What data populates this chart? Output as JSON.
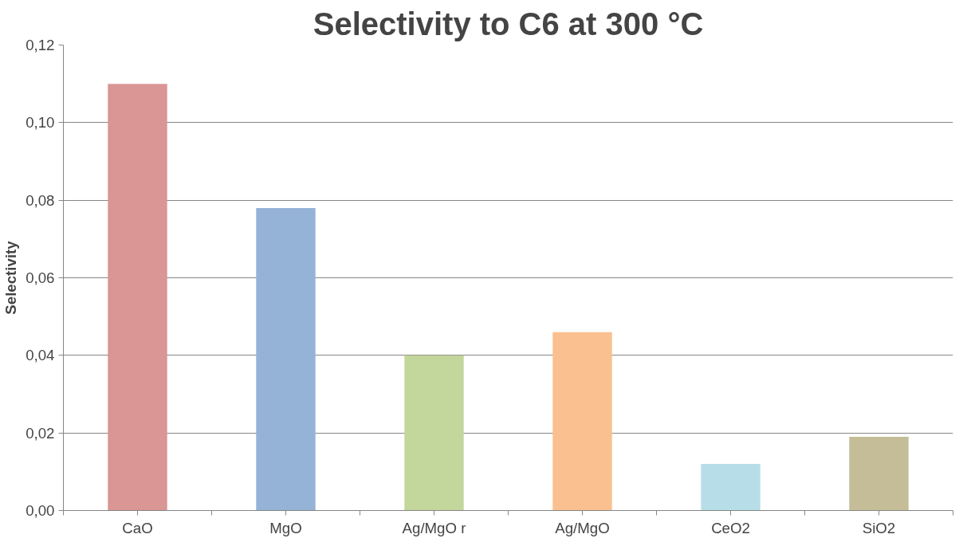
{
  "chart_data": {
    "type": "bar",
    "title": "Selectivity to C6 at 300 °C",
    "ylabel": "Selectivity",
    "categories": [
      "CaO",
      "MgO",
      "Ag/MgO r",
      "Ag/MgO",
      "CeO2",
      "SiO2"
    ],
    "values": [
      0.11,
      0.078,
      0.04,
      0.046,
      0.012,
      0.019
    ],
    "colors": [
      "#d99694",
      "#95b3d7",
      "#c3d69b",
      "#fac090",
      "#b7dee8",
      "#c4bd97"
    ],
    "ylim": [
      0,
      0.12
    ],
    "yticks": [
      {
        "value": 0,
        "label": "0,00"
      },
      {
        "value": 0.02,
        "label": "0,02"
      },
      {
        "value": 0.04,
        "label": "0,04"
      },
      {
        "value": 0.06,
        "label": "0,06"
      },
      {
        "value": 0.08,
        "label": "0,08"
      },
      {
        "value": 0.1,
        "label": "0,10"
      },
      {
        "value": 0.12,
        "label": "0,12"
      }
    ],
    "grid": "y"
  }
}
